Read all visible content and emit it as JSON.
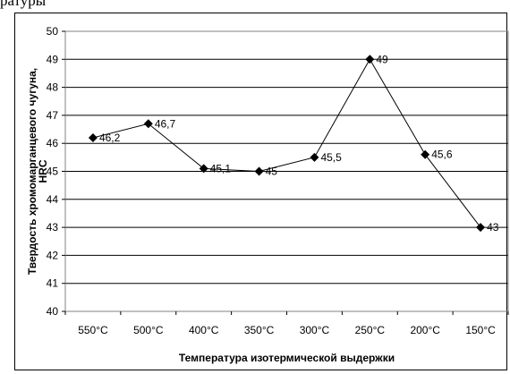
{
  "header_fragment": "ратуры",
  "chart_data": {
    "type": "line",
    "categories": [
      "550°C",
      "500°C",
      "400°C",
      "350°C",
      "300°C",
      "250°C",
      "200°C",
      "150°C"
    ],
    "series": [
      {
        "values": [
          46.2,
          46.7,
          45.1,
          45,
          45.5,
          49,
          45.6,
          43
        ]
      }
    ],
    "data_labels": [
      "46,2",
      "46,7",
      "45,1",
      "45",
      "45,5",
      "49",
      "45,6",
      "43"
    ],
    "y_ticks": [
      "40",
      "41",
      "42",
      "43",
      "44",
      "45",
      "46",
      "47",
      "48",
      "49",
      "50"
    ],
    "ylim": [
      40,
      50
    ],
    "grid": true,
    "xlabel": "Температура изотермической выдержки",
    "ylabel_lines": [
      "Твердость хромомарганцевого чугуна,",
      "HRC"
    ],
    "marker": "diamond",
    "line_color": "#000000"
  }
}
